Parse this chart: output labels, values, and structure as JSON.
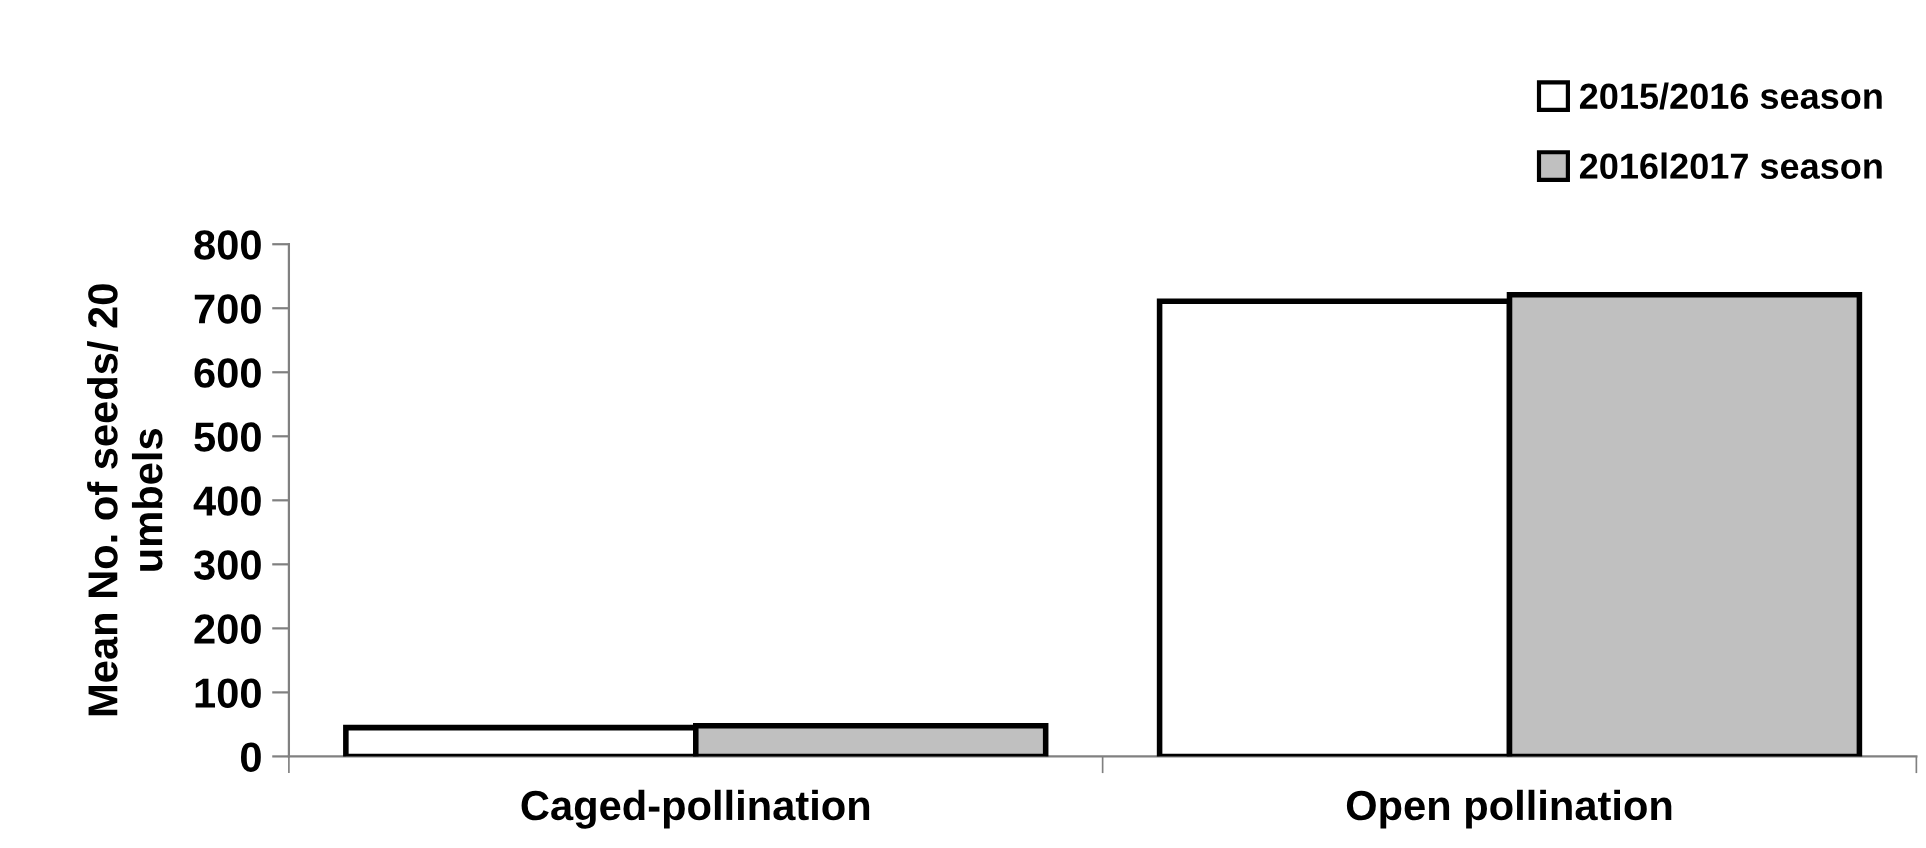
{
  "chart_data": {
    "type": "bar",
    "ylabel": "Mean No. of seeds/ 20\numbels",
    "categories": [
      "Caged-pollination",
      "Open pollination"
    ],
    "series": [
      {
        "name": "2015/2016 season",
        "color": "#ffffff",
        "values": [
          45,
          711
        ]
      },
      {
        "name": "2016l2017 season",
        "color": "#c0c0c0",
        "values": [
          48,
          721
        ]
      }
    ],
    "ylim": [
      0,
      800
    ],
    "yticks": [
      0,
      100,
      200,
      300,
      400,
      500,
      600,
      700,
      800
    ],
    "grid": false,
    "legend": "top right"
  }
}
